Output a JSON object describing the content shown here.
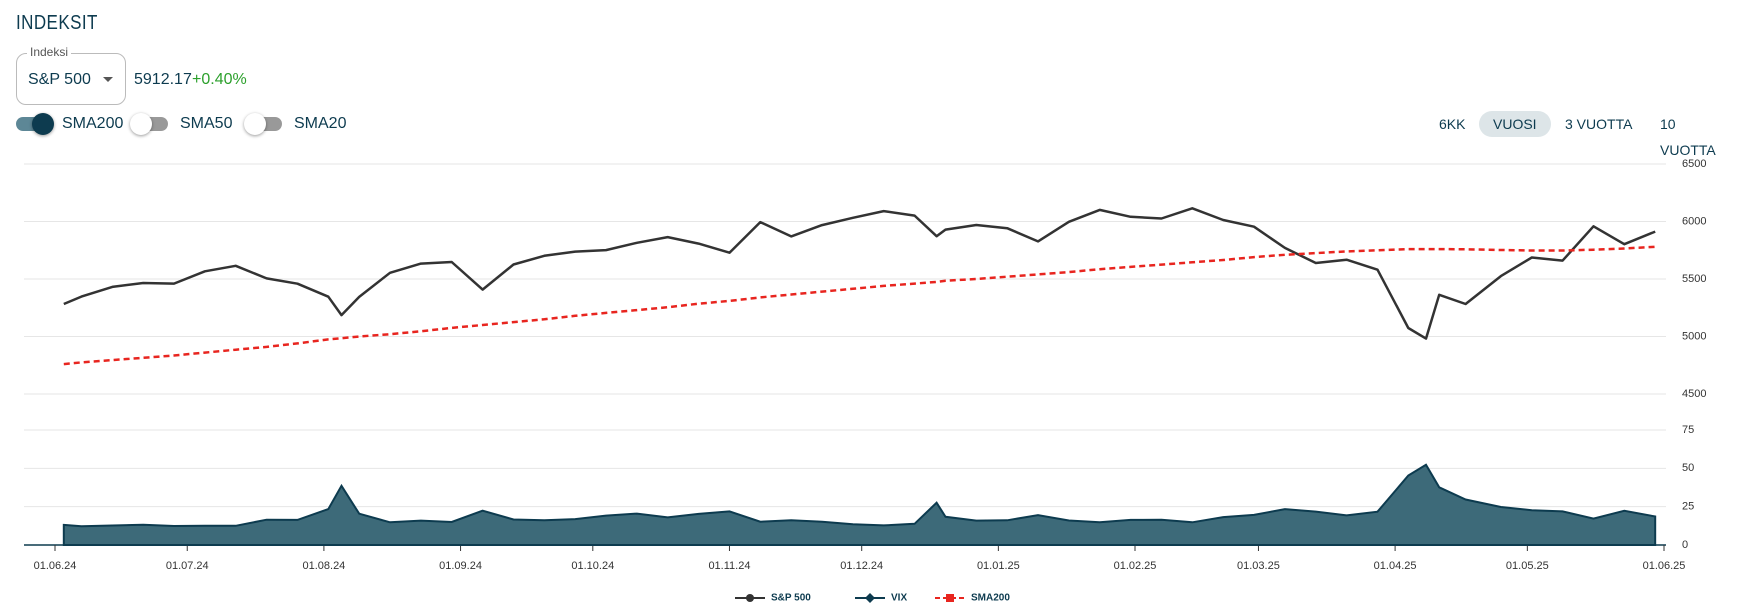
{
  "header": {
    "title": "INDEKSIT"
  },
  "selector": {
    "label": "Indeksi",
    "selected": "S&P 500",
    "price": "5912.17",
    "change": "+0.40%"
  },
  "toggles": [
    {
      "label": "SMA200",
      "on": true
    },
    {
      "label": "SMA50",
      "on": false
    },
    {
      "label": "SMA20",
      "on": false
    }
  ],
  "periods": {
    "options": [
      "6KK",
      "VUOSI",
      "3 VUOTTA",
      "10 VUOTTA"
    ],
    "active": "VUOSI"
  },
  "chart_data": {
    "type": "line",
    "grid": true,
    "legend": "bottom",
    "x": [
      "2024-06-03",
      "2024-06-07",
      "2024-06-14",
      "2024-06-21",
      "2024-06-28",
      "2024-07-05",
      "2024-07-12",
      "2024-07-19",
      "2024-07-26",
      "2024-08-02",
      "2024-08-05",
      "2024-08-09",
      "2024-08-16",
      "2024-08-23",
      "2024-08-30",
      "2024-09-06",
      "2024-09-13",
      "2024-09-20",
      "2024-09-27",
      "2024-10-04",
      "2024-10-11",
      "2024-10-18",
      "2024-10-25",
      "2024-11-01",
      "2024-11-08",
      "2024-11-15",
      "2024-11-22",
      "2024-11-29",
      "2024-12-06",
      "2024-12-13",
      "2024-12-18",
      "2024-12-20",
      "2024-12-27",
      "2025-01-03",
      "2025-01-10",
      "2025-01-17",
      "2025-01-24",
      "2025-01-31",
      "2025-02-07",
      "2025-02-14",
      "2025-02-21",
      "2025-02-28",
      "2025-03-07",
      "2025-03-14",
      "2025-03-21",
      "2025-03-28",
      "2025-04-04",
      "2025-04-08",
      "2025-04-11",
      "2025-04-17",
      "2025-04-25",
      "2025-05-02",
      "2025-05-09",
      "2025-05-16",
      "2025-05-23",
      "2025-05-30"
    ],
    "xlim": [
      "2024-06-01",
      "2025-06-01"
    ],
    "xticks": [
      {
        "value": "2024-06-01",
        "label": "01.06.24"
      },
      {
        "value": "2024-07-01",
        "label": "01.07.24"
      },
      {
        "value": "2024-08-01",
        "label": "01.08.24"
      },
      {
        "value": "2024-09-01",
        "label": "01.09.24"
      },
      {
        "value": "2024-10-01",
        "label": "01.10.24"
      },
      {
        "value": "2024-11-01",
        "label": "01.11.24"
      },
      {
        "value": "2024-12-01",
        "label": "01.12.24"
      },
      {
        "value": "2025-01-01",
        "label": "01.01.25"
      },
      {
        "value": "2025-02-01",
        "label": "01.02.25"
      },
      {
        "value": "2025-03-01",
        "label": "01.03.25"
      },
      {
        "value": "2025-04-01",
        "label": "01.04.25"
      },
      {
        "value": "2025-05-01",
        "label": "01.05.25"
      },
      {
        "value": "2025-06-01",
        "label": "01.06.25"
      }
    ],
    "ylim": [
      4500,
      6500
    ],
    "yticks": [
      4500,
      5000,
      5500,
      6000,
      6500
    ],
    "y2lim": [
      0,
      75
    ],
    "y2ticks": [
      0,
      25,
      50,
      75
    ],
    "series": [
      {
        "name": "S&P 500",
        "color": "#333333",
        "marker": "circle",
        "values": [
          5283,
          5347,
          5431,
          5465,
          5460,
          5567,
          5615,
          5505,
          5459,
          5346,
          5186,
          5344,
          5554,
          5634,
          5648,
          5408,
          5626,
          5702,
          5738,
          5751,
          5815,
          5864,
          5808,
          5729,
          5995,
          5870,
          5969,
          6032,
          6090,
          6051,
          5872,
          5930,
          5970,
          5942,
          5827,
          5997,
          6101,
          6041,
          6026,
          6115,
          6013,
          5955,
          5770,
          5639,
          5668,
          5581,
          5074,
          4982,
          5363,
          5283,
          5525,
          5687,
          5660,
          5958,
          5803,
          5912
        ]
      },
      {
        "name": "VIX",
        "color": "#0d3b4f",
        "fill": "#3d6a79",
        "marker": "diamond",
        "axis": "y2",
        "area": true,
        "values": [
          13.1,
          12.2,
          12.7,
          13.2,
          12.4,
          12.5,
          12.5,
          16.5,
          16.4,
          23.4,
          38.6,
          20.4,
          14.8,
          15.9,
          15.0,
          22.4,
          16.6,
          16.2,
          16.9,
          19.2,
          20.5,
          18.0,
          20.3,
          21.9,
          15.2,
          16.1,
          15.2,
          13.5,
          12.8,
          13.8,
          27.6,
          18.4,
          15.9,
          16.1,
          19.5,
          16.0,
          14.9,
          16.4,
          16.5,
          14.8,
          18.2,
          19.6,
          23.4,
          21.8,
          19.3,
          21.7,
          45.3,
          52.3,
          37.6,
          29.7,
          24.8,
          22.7,
          21.9,
          17.2,
          22.3,
          18.6
        ]
      },
      {
        "name": "SMA200",
        "color": "#e8251f",
        "marker": "square",
        "dashed": true,
        "values": [
          4760,
          4775,
          4795,
          4815,
          4835,
          4860,
          4885,
          4910,
          4940,
          4975,
          4985,
          5000,
          5020,
          5045,
          5075,
          5100,
          5125,
          5150,
          5180,
          5205,
          5230,
          5255,
          5285,
          5310,
          5340,
          5365,
          5390,
          5415,
          5440,
          5460,
          5475,
          5485,
          5500,
          5520,
          5540,
          5560,
          5585,
          5605,
          5625,
          5645,
          5665,
          5690,
          5710,
          5725,
          5740,
          5750,
          5760,
          5760,
          5760,
          5758,
          5752,
          5748,
          5748,
          5755,
          5765,
          5780
        ]
      }
    ]
  }
}
